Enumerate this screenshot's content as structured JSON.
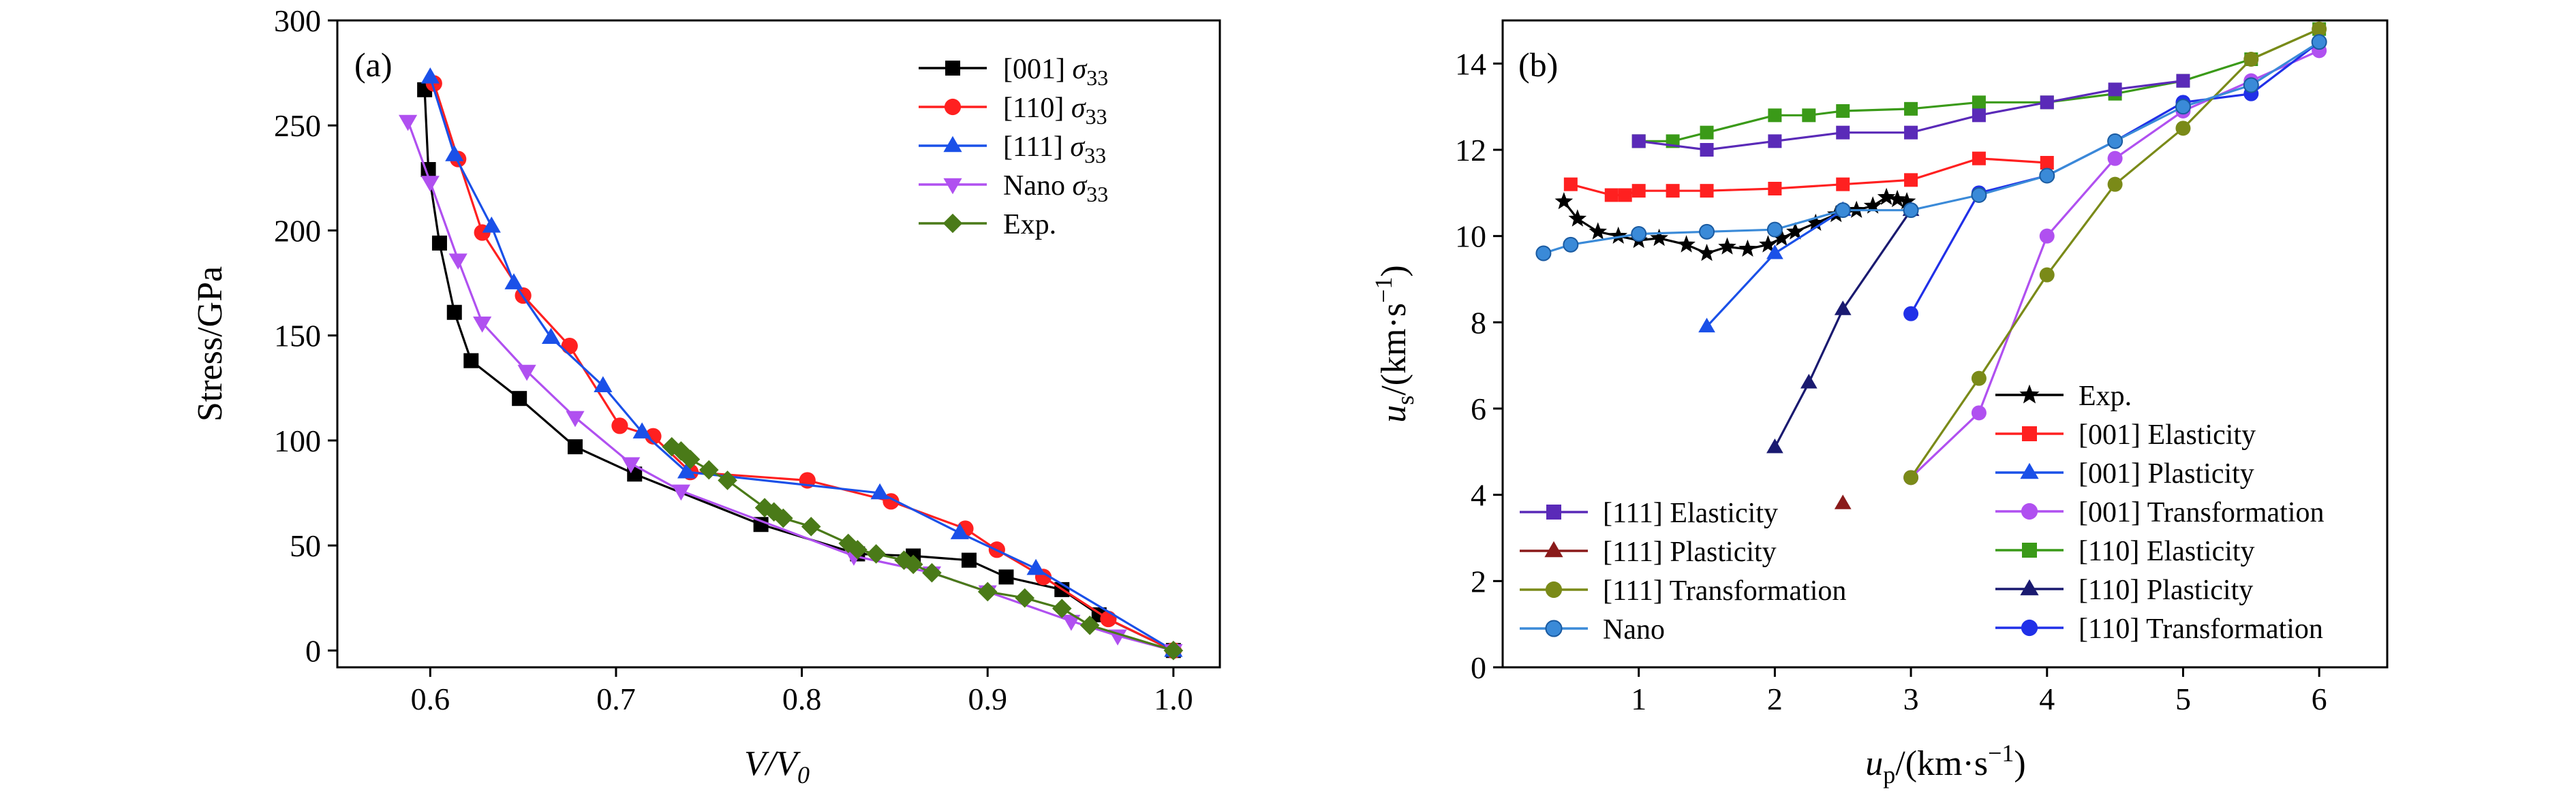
{
  "figure": {
    "panels": [
      {
        "id": "a",
        "panel_label": "(a)",
        "xlabel": {
          "main": "V/V",
          "sub": "0"
        },
        "ylabel": "Stress/GPa",
        "x_ticks": [
          0.6,
          0.7,
          0.8,
          0.9,
          1.0
        ],
        "y_ticks": [
          0,
          50,
          100,
          150,
          200,
          250,
          300
        ]
      },
      {
        "id": "b",
        "panel_label": "(b)",
        "xlabel": {
          "main": "u",
          "sub": "p",
          "rest": "/(km·s",
          "sup": "−1",
          "end": ")"
        },
        "ylabel": {
          "main": "u",
          "sub": "s",
          "rest": "/(km·s",
          "sup": "−1",
          "end": ")"
        },
        "x_ticks": [
          1,
          2,
          3,
          4,
          5,
          6
        ],
        "y_ticks": [
          0,
          2,
          4,
          6,
          8,
          10,
          12,
          14
        ]
      }
    ]
  },
  "chart_data": [
    {
      "type": "line",
      "xlabel": "V/V0",
      "ylabel": "Stress/GPa",
      "xlim": [
        0.55,
        1.025
      ],
      "ylim": [
        -8,
        300
      ],
      "grid": false,
      "legend_position": "top-right",
      "series": [
        {
          "name": "[001] σ33",
          "color": "#000000",
          "marker": "square",
          "x": [
            1.0,
            0.96,
            0.94,
            0.91,
            0.89,
            0.86,
            0.83,
            0.778,
            0.71,
            0.678,
            0.648,
            0.622,
            0.613,
            0.605,
            0.599,
            0.597
          ],
          "y": [
            0,
            17,
            29,
            35,
            43,
            45,
            46,
            60,
            84,
            97,
            120,
            138,
            161,
            194,
            229,
            267
          ]
        },
        {
          "name": "[110] σ33",
          "color": "#ff2020",
          "marker": "circle",
          "x": [
            1.0,
            0.965,
            0.93,
            0.905,
            0.888,
            0.848,
            0.803,
            0.74,
            0.72,
            0.702,
            0.675,
            0.65,
            0.628,
            0.615,
            0.602
          ],
          "y": [
            0,
            15,
            35,
            48,
            58,
            71,
            81,
            85,
            102,
            107,
            145,
            169,
            199,
            234,
            270
          ]
        },
        {
          "name": "[111] σ33",
          "color": "#1a50e8",
          "marker": "triangle-up",
          "x": [
            1.0,
            0.926,
            0.885,
            0.842,
            0.738,
            0.714,
            0.693,
            0.665,
            0.645,
            0.633,
            0.613,
            0.6
          ],
          "y": [
            0,
            39,
            56,
            75,
            85,
            104,
            126,
            149,
            175,
            202,
            236,
            273
          ]
        },
        {
          "name": "Nano σ33",
          "color": "#b050f0",
          "marker": "triangle-down",
          "x": [
            1.0,
            0.97,
            0.945,
            0.9,
            0.87,
            0.828,
            0.735,
            0.708,
            0.678,
            0.652,
            0.628,
            0.615,
            0.6,
            0.588
          ],
          "y": [
            0,
            7,
            14,
            28,
            37,
            45,
            76,
            89,
            111,
            133,
            156,
            186,
            223,
            252
          ]
        },
        {
          "name": "Exp.",
          "color": "#4a7a18",
          "marker": "diamond",
          "x": [
            1.0,
            0.955,
            0.94,
            0.92,
            0.9,
            0.87,
            0.86,
            0.855,
            0.84,
            0.83,
            0.825,
            0.805,
            0.79,
            0.785,
            0.78,
            0.76,
            0.75,
            0.74,
            0.735,
            0.73
          ],
          "y": [
            0,
            12,
            20,
            25,
            28,
            37,
            41,
            43,
            46,
            48,
            51,
            59,
            63,
            66,
            68,
            81,
            86,
            91,
            95,
            97
          ]
        }
      ]
    },
    {
      "type": "line",
      "xlabel": "up/(km·s−1)",
      "ylabel": "us/(km·s−1)",
      "xlim": [
        0,
        6.5
      ],
      "ylim": [
        0,
        15
      ],
      "grid": false,
      "legend_position": "bottom (two columns)",
      "series": [
        {
          "name": "Exp.",
          "color": "#000000",
          "marker": "star",
          "x": [
            0.45,
            0.55,
            0.7,
            0.85,
            1.0,
            1.15,
            1.35,
            1.5,
            1.65,
            1.8,
            1.95,
            2.05,
            2.15,
            2.3,
            2.45,
            2.6,
            2.72,
            2.82,
            2.9,
            2.97
          ],
          "y": [
            10.8,
            10.4,
            10.1,
            10.0,
            9.9,
            9.95,
            9.8,
            9.6,
            9.75,
            9.7,
            9.8,
            9.95,
            10.1,
            10.3,
            10.5,
            10.6,
            10.7,
            10.9,
            10.85,
            10.8
          ]
        },
        {
          "name": "[001] Elasticity",
          "color": "#ff2020",
          "marker": "square",
          "x": [
            0.5,
            0.8,
            0.9,
            1.0,
            1.25,
            1.5,
            2.0,
            2.5,
            3.0,
            3.5,
            4.0
          ],
          "y": [
            11.2,
            10.95,
            10.95,
            11.05,
            11.05,
            11.05,
            11.1,
            11.2,
            11.3,
            11.8,
            11.7
          ]
        },
        {
          "name": "[001] Plasticity",
          "color": "#1a50e8",
          "marker": "triangle-up",
          "x": [
            1.5,
            2.0,
            2.5
          ],
          "y": [
            7.9,
            9.6,
            10.6
          ]
        },
        {
          "name": "[001] Transformation",
          "color": "#b050f0",
          "marker": "circle",
          "x": [
            3.0,
            3.5,
            4.0,
            4.5,
            5.0,
            5.5,
            6.0
          ],
          "y": [
            4.4,
            5.9,
            10.0,
            11.8,
            12.9,
            13.6,
            14.3
          ]
        },
        {
          "name": "[110] Elasticity",
          "color": "#3a9a18",
          "marker": "square",
          "x": [
            1.0,
            1.25,
            1.5,
            2.0,
            2.25,
            2.5,
            3.0,
            3.5,
            4.0,
            4.5,
            5.0,
            5.5,
            6.0
          ],
          "y": [
            12.2,
            12.2,
            12.4,
            12.8,
            12.8,
            12.9,
            12.95,
            13.1,
            13.1,
            13.3,
            13.6,
            14.1,
            14.8
          ]
        },
        {
          "name": "[110] Plasticity",
          "color": "#1a1a70",
          "marker": "triangle-up",
          "x": [
            2.0,
            2.25,
            2.5,
            3.0
          ],
          "y": [
            5.1,
            6.6,
            8.3,
            10.6
          ]
        },
        {
          "name": "[110] Transformation",
          "color": "#2030e8",
          "marker": "circle",
          "x": [
            3.0,
            3.5,
            4.0,
            4.5,
            5.0,
            5.5,
            6.0
          ],
          "y": [
            8.2,
            11.0,
            11.4,
            12.2,
            13.1,
            13.3,
            14.5
          ]
        },
        {
          "name": "[111] Elasticity",
          "color": "#5a2ab8",
          "marker": "square",
          "x": [
            1.0,
            1.5,
            2.0,
            2.5,
            3.0,
            3.5,
            4.0,
            4.5,
            5.0
          ],
          "y": [
            12.2,
            12.0,
            12.2,
            12.4,
            12.4,
            12.8,
            13.1,
            13.4,
            13.6
          ]
        },
        {
          "name": "[111] Plasticity",
          "color": "#8a1a1a",
          "marker": "triangle-up",
          "x": [
            2.5
          ],
          "y": [
            3.8
          ]
        },
        {
          "name": "[111] Transformation",
          "color": "#7a8a18",
          "marker": "circle",
          "x": [
            3.0,
            3.5,
            4.0,
            4.5,
            5.0,
            5.5,
            6.0
          ],
          "y": [
            4.4,
            6.7,
            9.1,
            11.2,
            12.5,
            14.1,
            14.8
          ]
        },
        {
          "name": "Nano",
          "color": "#3a8ad8",
          "marker": "ball",
          "x": [
            0.3,
            0.5,
            1.0,
            1.5,
            2.0,
            2.5,
            3.0,
            3.5,
            4.0,
            4.5,
            5.0,
            5.5,
            6.0
          ],
          "y": [
            9.6,
            9.8,
            10.05,
            10.1,
            10.15,
            10.6,
            10.6,
            10.95,
            11.4,
            12.2,
            13.0,
            13.5,
            14.5
          ]
        }
      ]
    }
  ]
}
